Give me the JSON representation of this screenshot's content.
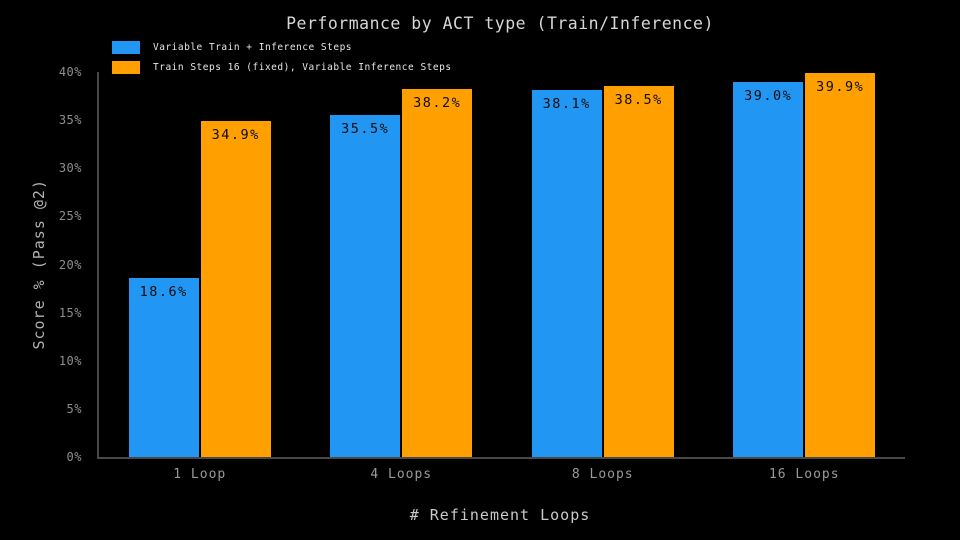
{
  "colors": {
    "background": "#000000",
    "axis_spine": "#484848",
    "series_blue": "#2196f3",
    "series_orange": "#ffa000",
    "bar_value_text": "#0d0d0d",
    "title_text": "#d6d6d6",
    "tick_text": "#8e8e8e"
  },
  "chart_data": {
    "type": "bar",
    "title": "Performance by ACT type (Train/Inference)",
    "xlabel": "# Refinement Loops",
    "ylabel": "Score % (Pass @2)",
    "categories": [
      "1 Loop",
      "4 Loops",
      "8 Loops",
      "16 Loops"
    ],
    "series": [
      {
        "name": "Variable Train + Inference Steps",
        "color": "#2196f3",
        "values": [
          18.6,
          35.5,
          38.1,
          39.0
        ],
        "value_labels": [
          "18.6%",
          "35.5%",
          "38.1%",
          "39.0%"
        ]
      },
      {
        "name": "Train Steps 16 (fixed), Variable Inference Steps",
        "color": "#ffa000",
        "values": [
          34.9,
          38.2,
          38.5,
          39.9
        ],
        "value_labels": [
          "34.9%",
          "38.2%",
          "38.5%",
          "39.9%"
        ]
      }
    ],
    "ylim": [
      0,
      40
    ],
    "yticks": [
      "0%",
      "5%",
      "10%",
      "15%",
      "20%",
      "25%",
      "30%",
      "35%",
      "40%"
    ],
    "grid": false,
    "legend_position": "upper-left"
  }
}
